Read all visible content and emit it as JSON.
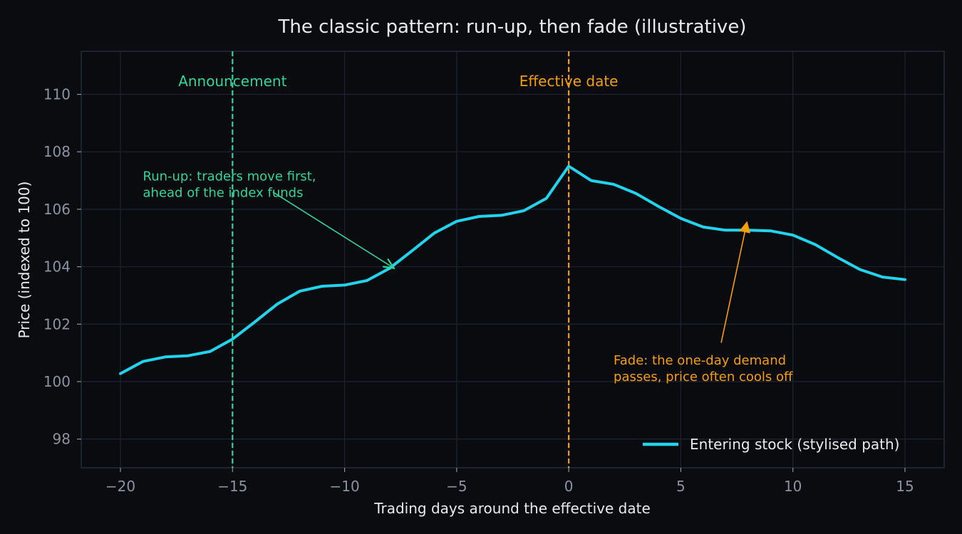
{
  "chart_data": {
    "type": "line",
    "title": "The classic pattern: run-up, then fade (illustrative)",
    "xlabel": "Trading days around the effective date",
    "ylabel": "Price (indexed to 100)",
    "xlim": [
      -21.75,
      16.75
    ],
    "ylim": [
      97.0,
      111.5
    ],
    "x_ticks": [
      -20,
      -15,
      -10,
      -5,
      0,
      5,
      10,
      15
    ],
    "x_tick_labels": [
      "−20",
      "−15",
      "−10",
      "−5",
      "0",
      "5",
      "10",
      "15"
    ],
    "y_ticks": [
      98,
      100,
      102,
      104,
      106,
      108,
      110
    ],
    "y_tick_labels": [
      "98",
      "100",
      "102",
      "104",
      "106",
      "108",
      "110"
    ],
    "grid": true,
    "legend_position": "lower-right",
    "series": [
      {
        "name": "Entering stock (stylised path)",
        "color": "#22d3ee",
        "x": [
          -20,
          -19,
          -18,
          -17,
          -16,
          -15,
          -14,
          -13,
          -12,
          -11,
          -10,
          -9,
          -8,
          -7,
          -6,
          -5,
          -4,
          -3,
          -2,
          -1,
          0,
          1,
          2,
          3,
          4,
          5,
          6,
          7,
          8,
          9,
          10,
          11,
          12,
          13,
          14,
          15
        ],
        "y": [
          100.28,
          100.7,
          100.86,
          100.9,
          101.05,
          101.48,
          102.08,
          102.7,
          103.15,
          103.32,
          103.36,
          103.52,
          103.94,
          104.55,
          105.17,
          105.58,
          105.75,
          105.79,
          105.95,
          106.38,
          107.5,
          107.0,
          106.87,
          106.55,
          106.1,
          105.68,
          105.38,
          105.27,
          105.27,
          105.25,
          105.1,
          104.77,
          104.32,
          103.9,
          103.64,
          103.55
        ]
      }
    ],
    "vlines": [
      {
        "x": -15,
        "label": "Announcement",
        "color": "#34d399"
      },
      {
        "x": 0,
        "label": "Effective date",
        "color": "#f59e0b"
      }
    ],
    "annotations": [
      {
        "lines": [
          "Run-up: traders move first,",
          "ahead of the index funds"
        ],
        "text_at": [
          -19.0,
          107.0
        ],
        "arrow_from": [
          -13.2,
          106.6
        ],
        "arrow_to": [
          -7.8,
          103.95
        ],
        "color": "#34d399"
      },
      {
        "lines": [
          "Fade: the one-day demand",
          "passes, price often cools off"
        ],
        "text_at": [
          2.0,
          100.6
        ],
        "arrow_from": [
          6.8,
          101.35
        ],
        "arrow_to": [
          7.95,
          105.55
        ],
        "color": "#f59e0b"
      }
    ]
  }
}
